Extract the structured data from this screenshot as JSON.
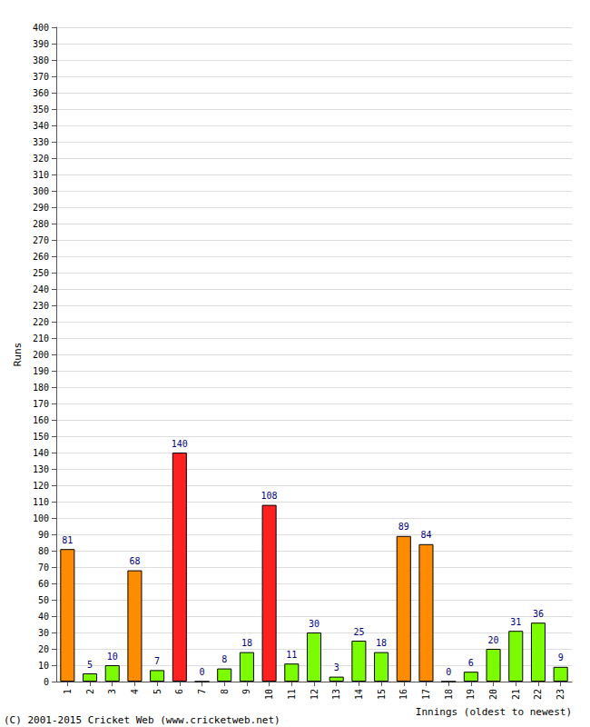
{
  "chart_data": {
    "type": "bar",
    "categories": [
      "1",
      "2",
      "3",
      "4",
      "5",
      "6",
      "7",
      "8",
      "9",
      "10",
      "11",
      "12",
      "13",
      "14",
      "15",
      "16",
      "17",
      "18",
      "19",
      "20",
      "21",
      "22",
      "23"
    ],
    "values": [
      81,
      5,
      10,
      68,
      7,
      140,
      0,
      8,
      18,
      108,
      11,
      30,
      3,
      25,
      18,
      89,
      84,
      0,
      6,
      20,
      31,
      36,
      9
    ],
    "colors": [
      "#ff8c00",
      "#7cfc00",
      "#7cfc00",
      "#ff8c00",
      "#7cfc00",
      "#ff2020",
      "#7cfc00",
      "#7cfc00",
      "#7cfc00",
      "#ff2020",
      "#7cfc00",
      "#7cfc00",
      "#7cfc00",
      "#7cfc00",
      "#7cfc00",
      "#ff8c00",
      "#ff8c00",
      "#7cfc00",
      "#7cfc00",
      "#7cfc00",
      "#7cfc00",
      "#7cfc00",
      "#7cfc00"
    ],
    "x_label": "Innings (oldest to newest)",
    "y_label": "Runs",
    "annotations": [
      "(C) 2001-2015 Cricket Web (www.cricketweb.net)"
    ],
    "ylim": [
      0,
      400
    ],
    "yticks": [
      0,
      10,
      20,
      30,
      40,
      50,
      60,
      70,
      80,
      90,
      100,
      110,
      120,
      130,
      140,
      150,
      160,
      170,
      180,
      190,
      200,
      210,
      220,
      230,
      240,
      250,
      260,
      270,
      280,
      290,
      300,
      310,
      320,
      330,
      340,
      350,
      360,
      370,
      380,
      390,
      400
    ],
    "grid": true,
    "data_labels": true
  }
}
